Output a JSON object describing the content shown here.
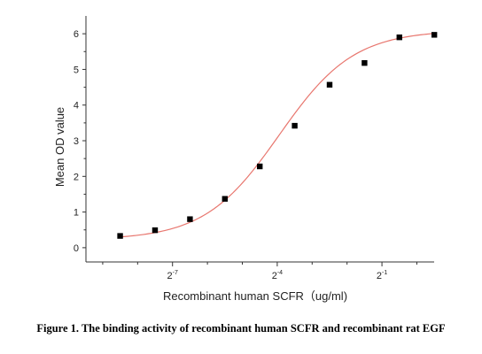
{
  "caption": "Figure 1. The binding activity of recombinant human SCFR and recombinant rat EGF",
  "chart_data": {
    "type": "scatter",
    "title": "",
    "xlabel": "Recombinant human SCFR（ug/ml)",
    "ylabel": "Mean OD value",
    "x_scale": "log2",
    "xlim": [
      0.0014,
      1.41
    ],
    "ylim": [
      -0.4,
      6.5
    ],
    "x_ticks": [
      {
        "value": 0.0078125,
        "base": "2",
        "exp": "-7"
      },
      {
        "value": 0.0625,
        "base": "2",
        "exp": "-4"
      },
      {
        "value": 0.5,
        "base": "2",
        "exp": "-1"
      }
    ],
    "y_ticks": [
      "0",
      "1",
      "2",
      "3",
      "4",
      "5",
      "6"
    ],
    "grid": false,
    "colors": {
      "points": "#000000",
      "fit_line": "#e8766e",
      "axes": "#333333"
    },
    "series": [
      {
        "marker": "square",
        "x": [
          0.00276,
          0.00552,
          0.01105,
          0.0221,
          0.0442,
          0.0884,
          0.1768,
          0.3536,
          0.7071,
          1.4142
        ],
        "y": [
          0.33,
          0.49,
          0.8,
          1.37,
          2.28,
          3.42,
          4.57,
          5.18,
          5.9,
          5.97
        ]
      }
    ],
    "fit": {
      "type": "4PL",
      "bottom": 0.22,
      "top": 6.1,
      "ec50": 0.065,
      "hill": 1.35
    }
  }
}
